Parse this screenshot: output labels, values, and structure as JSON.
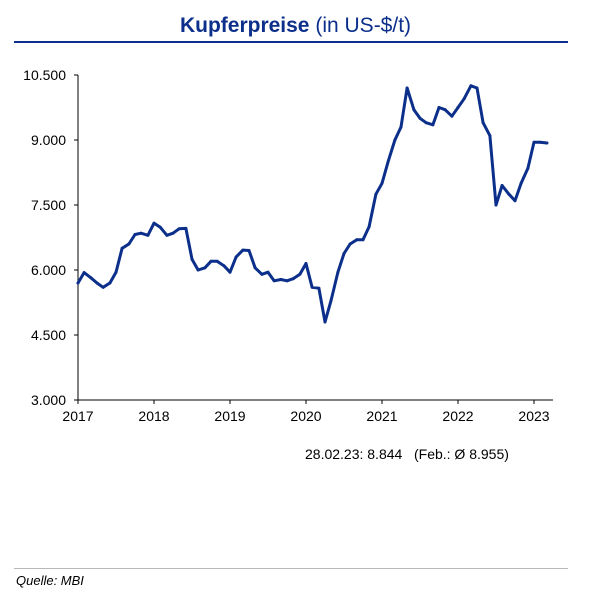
{
  "title": {
    "main": "Kupferpreise",
    "sub": "(in US-$/t)"
  },
  "note": "28.02.23: 8.844   (Feb.: Ø 8.955)",
  "source": "Quelle: MBI",
  "colors": {
    "title": "#0b2f8a",
    "line": "#0b2f8a"
  },
  "chart_data": {
    "type": "line",
    "title": "Kupferpreise (in US-$/t)",
    "xlabel": "",
    "ylabel": "",
    "grid": false,
    "legend": "none",
    "ylim": [
      3000,
      10500
    ],
    "xlim": [
      2017.0,
      2023.25
    ],
    "yticks": [
      3000,
      4500,
      6000,
      7500,
      9000,
      10500
    ],
    "ytick_labels": [
      "3.000",
      "4.500",
      "6.000",
      "7.500",
      "9.000",
      "10.500"
    ],
    "xticks": [
      2017,
      2018,
      2019,
      2020,
      2021,
      2022,
      2023
    ],
    "xtick_labels": [
      "2017",
      "2018",
      "2019",
      "2020",
      "2021",
      "2022",
      "2023"
    ],
    "series": [
      {
        "x": [
          2017.0,
          2017.08,
          2017.17,
          2017.25,
          2017.33,
          2017.42,
          2017.5,
          2017.58,
          2017.67,
          2017.75,
          2017.83,
          2017.92,
          2018.0,
          2018.08,
          2018.17,
          2018.25,
          2018.33,
          2018.42,
          2018.5,
          2018.58,
          2018.67,
          2018.75,
          2018.83,
          2018.92,
          2019.0,
          2019.08,
          2019.17,
          2019.25,
          2019.33,
          2019.42,
          2019.5,
          2019.58,
          2019.67,
          2019.75,
          2019.83,
          2019.92,
          2020.0,
          2020.08,
          2020.17,
          2020.25,
          2020.33,
          2020.42,
          2020.5,
          2020.58,
          2020.67,
          2020.75,
          2020.83,
          2020.92,
          2021.0,
          2021.08,
          2021.17,
          2021.25,
          2021.33,
          2021.42,
          2021.5,
          2021.58,
          2021.67,
          2021.75,
          2021.83,
          2021.92,
          2022.0,
          2022.08,
          2022.17,
          2022.25,
          2022.33,
          2022.42,
          2022.5,
          2022.58,
          2022.67,
          2022.75,
          2022.83,
          2022.92,
          2023.0,
          2023.08,
          2023.17
        ],
        "values": [
          5700,
          5940,
          5820,
          5700,
          5600,
          5700,
          5950,
          6500,
          6600,
          6820,
          6850,
          6800,
          7080,
          6990,
          6800,
          6850,
          6950,
          6960,
          6250,
          6000,
          6050,
          6200,
          6200,
          6100,
          5950,
          6300,
          6460,
          6450,
          6050,
          5900,
          5950,
          5750,
          5780,
          5750,
          5800,
          5900,
          6150,
          5600,
          5580,
          4800,
          5300,
          5950,
          6380,
          6600,
          6700,
          6700,
          7000,
          7750,
          8000,
          8500,
          9000,
          9300,
          10200,
          9700,
          9500,
          9400,
          9350,
          9750,
          9700,
          9550,
          9750,
          9950,
          10250,
          10200,
          9400,
          9100,
          7500,
          7950,
          7750,
          7600,
          8000,
          8350,
          8950,
          8950,
          8930
        ]
      }
    ]
  }
}
